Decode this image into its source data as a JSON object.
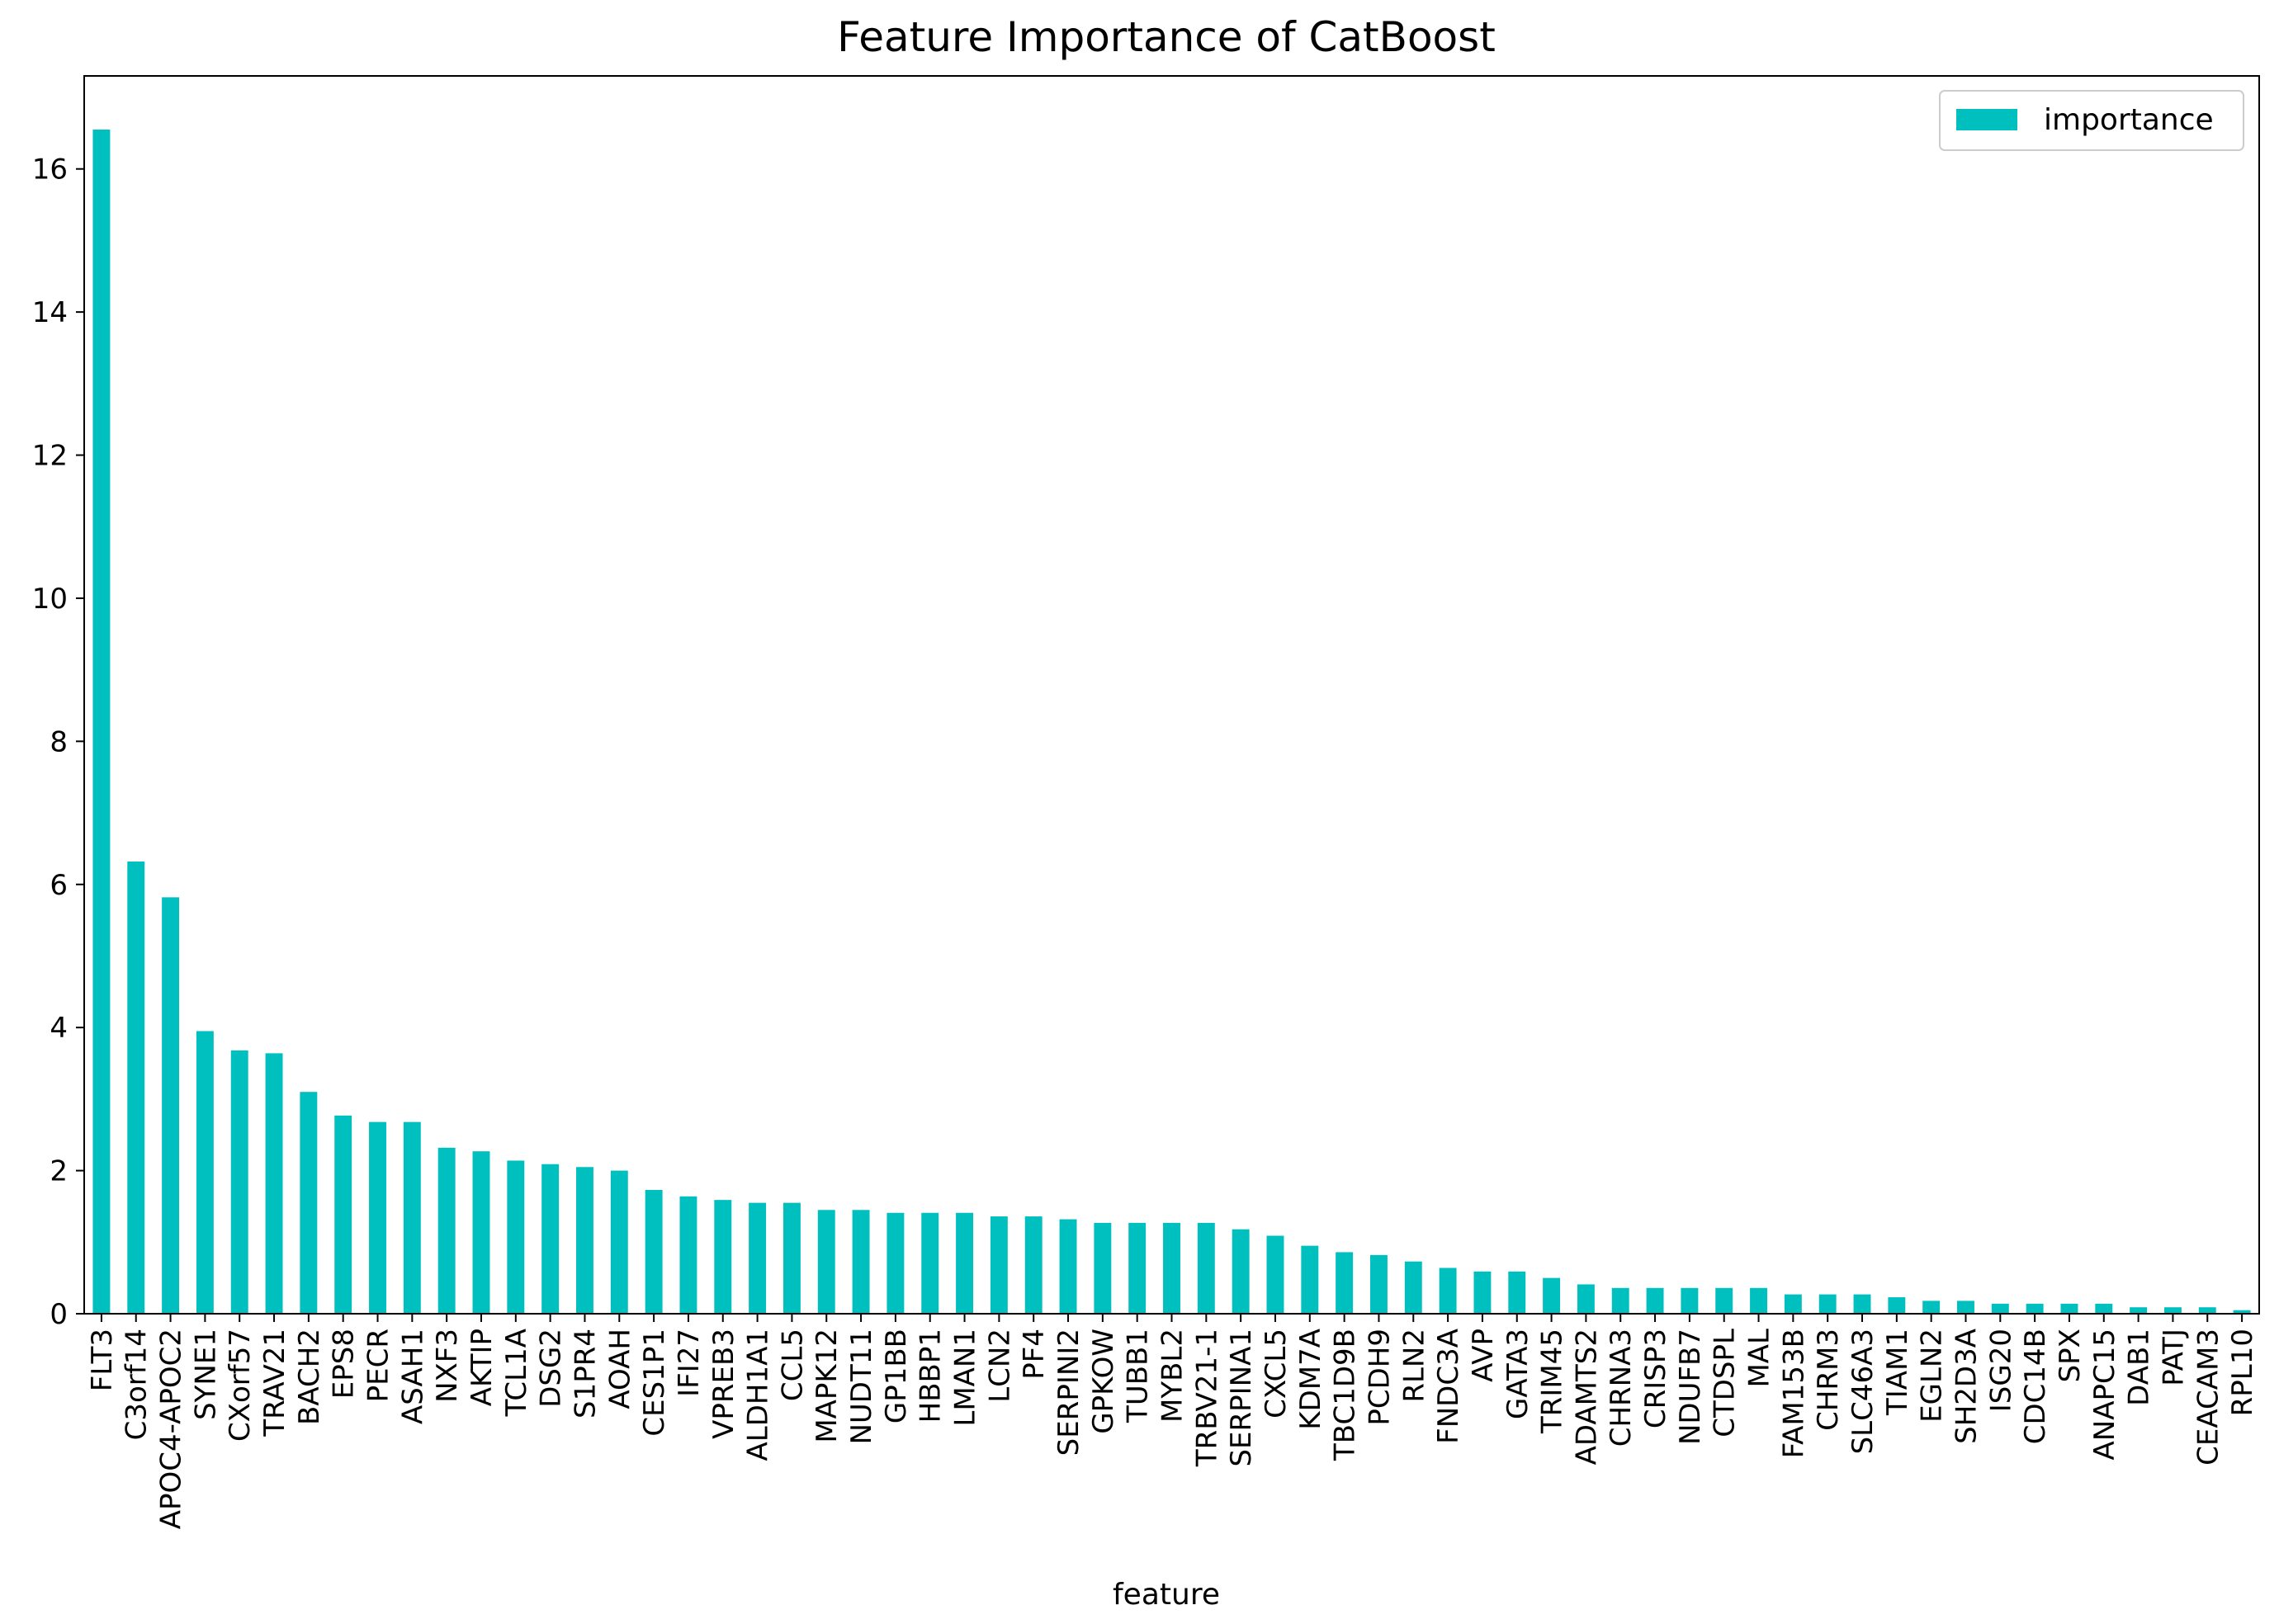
{
  "chart_data": {
    "type": "bar",
    "title": "Feature Importance of CatBoost",
    "xlabel": "feature",
    "ylabel": "",
    "ylim": [
      0,
      17.3
    ],
    "yticks": [
      0,
      2,
      4,
      6,
      8,
      10,
      12,
      14,
      16
    ],
    "grid": false,
    "legend_position": "top-right",
    "series": [
      {
        "name": "importance",
        "color": "#00bfbf",
        "values": [
          16.55,
          6.32,
          5.82,
          3.95,
          3.68,
          3.64,
          3.1,
          2.77,
          2.68,
          2.68,
          2.32,
          2.27,
          2.14,
          2.09,
          2.05,
          2.0,
          1.73,
          1.64,
          1.59,
          1.55,
          1.55,
          1.45,
          1.45,
          1.41,
          1.41,
          1.41,
          1.36,
          1.36,
          1.32,
          1.27,
          1.27,
          1.27,
          1.27,
          1.18,
          1.09,
          0.95,
          0.86,
          0.82,
          0.73,
          0.64,
          0.59,
          0.59,
          0.5,
          0.41,
          0.36,
          0.36,
          0.36,
          0.36,
          0.36,
          0.27,
          0.27,
          0.27,
          0.23,
          0.18,
          0.18,
          0.14,
          0.14,
          0.14,
          0.14,
          0.09,
          0.09,
          0.09,
          0.05
        ]
      }
    ],
    "categories": [
      "FLT3",
      "C3orf14",
      "APOC4-APOC2",
      "SYNE1",
      "CXorf57",
      "TRAV21",
      "BACH2",
      "EPS8",
      "PECR",
      "ASAH1",
      "NXF3",
      "AKTIP",
      "TCL1A",
      "DSG2",
      "S1PR4",
      "AOAH",
      "CES1P1",
      "IFI27",
      "VPREB3",
      "ALDH1A1",
      "CCL5",
      "MAPK12",
      "NUDT11",
      "GP1BB",
      "HBBP1",
      "LMAN1",
      "LCN2",
      "PF4",
      "SERPINI2",
      "GPKOW",
      "TUBB1",
      "MYBL2",
      "TRBV21-1",
      "SERPINA1",
      "CXCL5",
      "KDM7A",
      "TBC1D9B",
      "PCDH9",
      "RLN2",
      "FNDC3A",
      "AVP",
      "GATA3",
      "TRIM45",
      "ADAMTS2",
      "CHRNA3",
      "CRISP3",
      "NDUFB7",
      "CTDSPL",
      "MAL",
      "FAM153B",
      "CHRM3",
      "SLC46A3",
      "TIAM1",
      "EGLN2",
      "SH2D3A",
      "ISG20",
      "CDC14B",
      "SPX",
      "ANAPC15",
      "DAB1",
      "PATJ",
      "CEACAM3",
      "RPL10"
    ]
  }
}
